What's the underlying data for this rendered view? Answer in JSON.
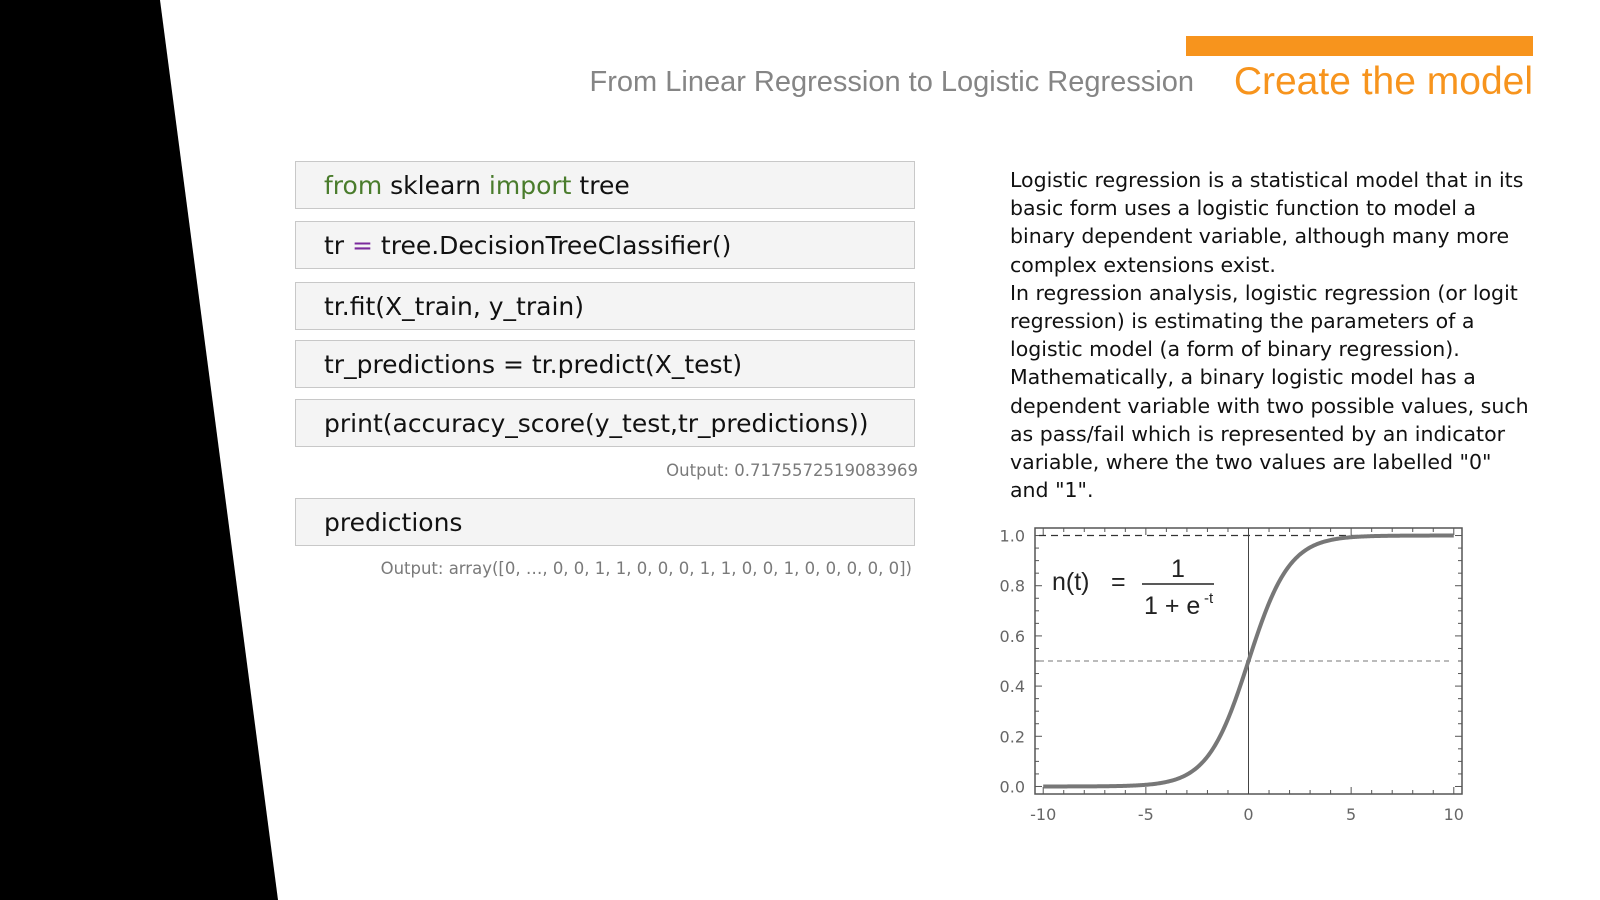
{
  "slide": {
    "subtitle": "From Linear Regression to Logistic Regression",
    "title": "Create the model",
    "accent_color": "#f7941d"
  },
  "code_cells": [
    {
      "tokens": [
        {
          "text": "from",
          "kind": "keyword"
        },
        {
          "text": " sklearn ",
          "kind": "plain"
        },
        {
          "text": "import",
          "kind": "keyword"
        },
        {
          "text": " tree",
          "kind": "plain"
        }
      ]
    },
    {
      "tokens": [
        {
          "text": "tr ",
          "kind": "plain"
        },
        {
          "text": "=",
          "kind": "operator"
        },
        {
          "text": " tree.DecisionTreeClassifier()",
          "kind": "plain"
        }
      ]
    },
    {
      "tokens": [
        {
          "text": "tr.fit(X_train, y_train)",
          "kind": "plain"
        }
      ]
    },
    {
      "tokens": [
        {
          "text": "tr_predictions = tr.predict(X_test)",
          "kind": "plain"
        }
      ]
    },
    {
      "tokens": [
        {
          "text": "print(accuracy_score(y_test,tr_predictions))",
          "kind": "plain"
        }
      ]
    },
    {
      "tokens": [
        {
          "text": "predictions",
          "kind": "plain"
        }
      ]
    }
  ],
  "outputs": {
    "accuracy": "Output: 0.7175572519083969",
    "predictions": "Output: array([0, …, 0, 0, 1, 1, 0, 0, 0, 1, 1, 0, 0, 1, 0, 0, 0, 0, 0])"
  },
  "description": {
    "paragraph_1": "Logistic regression is a statistical model that in its basic form uses a logistic function to model a binary dependent variable, although many more complex extensions exist.",
    "paragraph_2": "In regression analysis, logistic regression (or logit regression) is estimating the parameters of a logistic model (a form of binary regression). Mathematically, a binary logistic model has a dependent variable with two possible values, such as pass/fail which is represented by an indicator variable, where the two values are labelled \"0\" and \"1\"."
  },
  "chart_data": {
    "type": "line",
    "function": "1 / (1 + e^-t)",
    "x_ticks": [
      "-10",
      "-5",
      "0",
      "5",
      "10"
    ],
    "y_ticks": [
      "0.0",
      "0.2",
      "0.4",
      "0.6",
      "0.8",
      "1.0"
    ],
    "xlim": [
      -10.4,
      10.4
    ],
    "ylim": [
      -0.03,
      1.03
    ],
    "grid": false,
    "reference_lines": {
      "y_dashed": [
        0.5,
        1.0
      ],
      "x_solid": [
        0
      ]
    },
    "formula": {
      "lhs": "n(t)",
      "equals": "=",
      "numerator": "1",
      "denominator_base": "1 + e",
      "denominator_exp": "-t"
    },
    "line_color": "#777777"
  }
}
